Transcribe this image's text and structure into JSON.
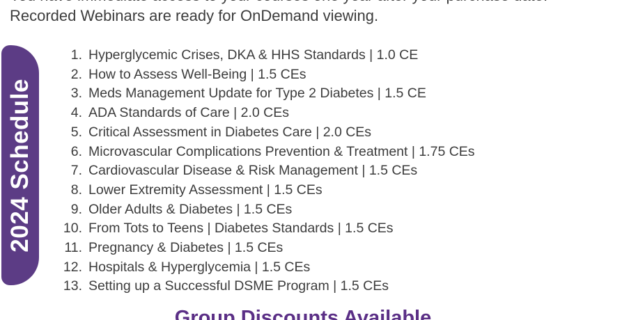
{
  "intro": {
    "line1": "You have immediate access to your courses one year after your purchase date.",
    "line2": "Recorded Webinars are ready for OnDemand viewing."
  },
  "ribbon": {
    "label": "2024 Schedule",
    "bg_color": "#5c3c85",
    "text_color": "#ffffff"
  },
  "schedule": {
    "items": [
      {
        "num": "1.",
        "text": "Hyperglycemic Crises, DKA & HHS Standards | 1.0 CE"
      },
      {
        "num": "2.",
        "text": "How to Assess Well-Being | 1.5 CEs"
      },
      {
        "num": "3.",
        "text": "Meds Management Update for Type 2 Diabetes | 1.5 CE"
      },
      {
        "num": "4.",
        "text": "ADA Standards of Care | 2.0 CEs"
      },
      {
        "num": "5.",
        "text": "Critical Assessment in Diabetes Care | 2.0 CEs"
      },
      {
        "num": "6.",
        "text": "Microvascular Complications Prevention & Treatment | 1.75 CEs"
      },
      {
        "num": "7.",
        "text": "Cardiovascular Disease & Risk Management | 1.5 CEs"
      },
      {
        "num": "8.",
        "text": "Lower Extremity Assessment | 1.5 CEs"
      },
      {
        "num": "9.",
        "text": "Older Adults & Diabetes | 1.5 CEs"
      },
      {
        "num": "10.",
        "text": "From Tots to Teens | Diabetes Standards | 1.5 CEs"
      },
      {
        "num": "11.",
        "text": "Pregnancy & Diabetes | 1.5 CEs"
      },
      {
        "num": "12.",
        "text": "Hospitals & Hyperglycemia | 1.5 CEs"
      },
      {
        "num": "13.",
        "text": "Setting up a Successful DSME Program | 1.5 CEs"
      }
    ]
  },
  "footer": {
    "heading": "Group Discounts Available",
    "color": "#5b2f86"
  }
}
